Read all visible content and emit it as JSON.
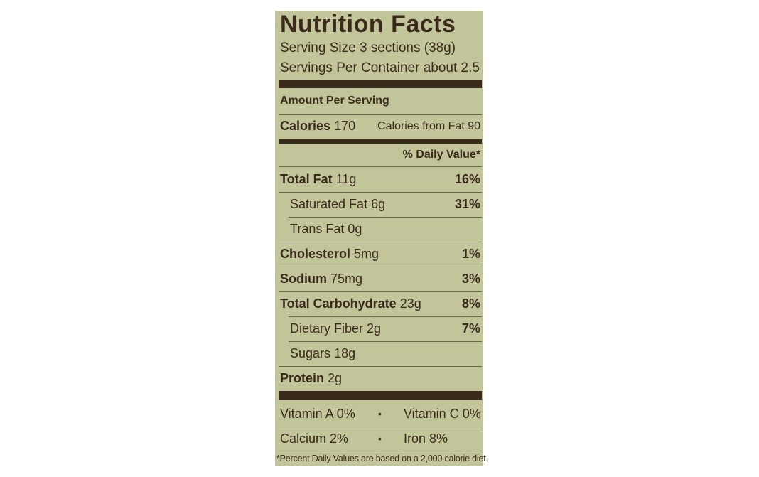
{
  "label": {
    "title": "Nutrition Facts",
    "serving_size": "Serving Size 3 sections (38g)",
    "servings_per_container": "Servings Per Container about 2.5",
    "amount_per_serving": "Amount Per Serving",
    "calories": {
      "label": "Calories",
      "value": "170"
    },
    "calories_from_fat": "Calories from Fat 90",
    "daily_value_header": "% Daily Value*",
    "nutrients": [
      {
        "name": "Total Fat",
        "amount": "11g",
        "dv": "16%"
      },
      {
        "name": "Saturated Fat",
        "amount": "6g",
        "dv": "31%"
      },
      {
        "name": "Trans Fat",
        "amount": "0g",
        "dv": ""
      },
      {
        "name": "Cholesterol",
        "amount": "5mg",
        "dv": "1%"
      },
      {
        "name": "Sodium",
        "amount": "75mg",
        "dv": "3%"
      },
      {
        "name": "Total Carbohydrate",
        "amount": "23g",
        "dv": "8%"
      },
      {
        "name": "Dietary Fiber",
        "amount": "2g",
        "dv": "7%"
      },
      {
        "name": "Sugars",
        "amount": "18g",
        "dv": ""
      },
      {
        "name": "Protein",
        "amount": "2g",
        "dv": ""
      }
    ],
    "vitamins": [
      {
        "left": "Vitamin A 0%",
        "separator": "•",
        "right": "Vitamin C 0%"
      },
      {
        "left": "Calcium 2%",
        "separator": "•",
        "right": "Iron 8%"
      }
    ],
    "footnote": "*Percent Daily Values are based on a 2,000 calorie diet."
  },
  "colors": {
    "label_background": "#c2c59a",
    "ink": "#3a2a1c"
  }
}
